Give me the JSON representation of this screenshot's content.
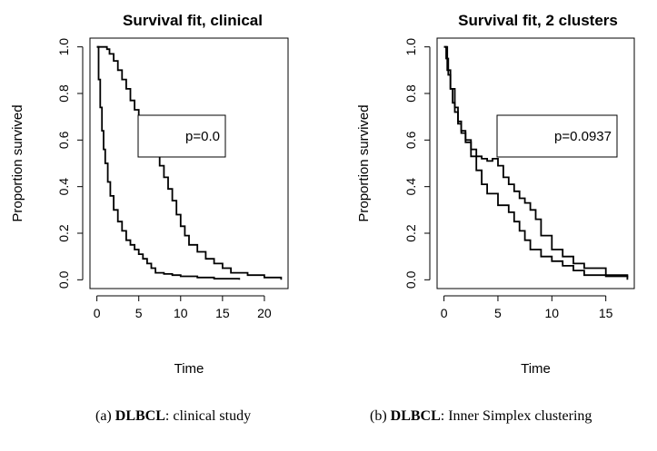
{
  "chart_data": [
    {
      "type": "line",
      "title": "Survival fit, clinical",
      "xlabel": "Time",
      "ylabel": "Proportion survived",
      "xlim": [
        0,
        22
      ],
      "ylim": [
        0,
        1
      ],
      "xticks": [
        0,
        5,
        10,
        15,
        20
      ],
      "yticks": [
        0.0,
        0.2,
        0.4,
        0.6,
        0.8,
        1.0
      ],
      "legend_text": "p=0.0",
      "legend_position": "top-right",
      "series": [
        {
          "x": [
            0,
            0.2,
            0.4,
            0.6,
            0.8,
            1.0,
            1.3,
            1.6,
            2.0,
            2.5,
            3.0,
            3.5,
            4.0,
            4.5,
            5.0,
            5.5,
            6.0,
            6.5,
            7.0,
            8.0,
            9.0,
            10.0,
            12.0,
            14.0,
            17.0
          ],
          "y": [
            1.0,
            0.86,
            0.74,
            0.64,
            0.56,
            0.5,
            0.42,
            0.36,
            0.3,
            0.25,
            0.21,
            0.17,
            0.15,
            0.13,
            0.11,
            0.09,
            0.07,
            0.05,
            0.03,
            0.025,
            0.02,
            0.015,
            0.01,
            0.005,
            0.0
          ]
        },
        {
          "x": [
            0,
            1.2,
            1.5,
            2.0,
            2.5,
            3.0,
            3.5,
            4.0,
            4.5,
            5.0,
            5.5,
            6.0,
            6.5,
            7.0,
            7.5,
            8.0,
            8.5,
            9.0,
            9.5,
            10.0,
            10.5,
            11.0,
            12.0,
            13.0,
            14.0,
            15.0,
            16.0,
            18.0,
            20.0,
            22.0
          ],
          "y": [
            1.0,
            0.99,
            0.97,
            0.94,
            0.9,
            0.86,
            0.82,
            0.77,
            0.73,
            0.7,
            0.67,
            0.63,
            0.59,
            0.54,
            0.49,
            0.44,
            0.39,
            0.34,
            0.28,
            0.23,
            0.19,
            0.15,
            0.12,
            0.09,
            0.07,
            0.05,
            0.03,
            0.02,
            0.01,
            0.0
          ]
        }
      ]
    },
    {
      "type": "line",
      "title": "Survival fit, 2 clusters",
      "xlabel": "Time",
      "ylabel": "Proportion survived",
      "xlim": [
        0,
        17
      ],
      "ylim": [
        0,
        1
      ],
      "xticks": [
        0,
        5,
        10,
        15
      ],
      "yticks": [
        0.0,
        0.2,
        0.4,
        0.6,
        0.8,
        1.0
      ],
      "legend_text": "p=0.0937",
      "legend_position": "top-right",
      "series": [
        {
          "x": [
            0,
            0.2,
            0.4,
            0.6,
            0.8,
            1.0,
            1.3,
            1.6,
            2.0,
            2.5,
            3.0,
            3.5,
            4.0,
            5.0,
            6.0,
            6.5,
            7.0,
            7.5,
            8.0,
            9.0,
            10.0,
            11.0,
            12.0,
            13.0,
            15.0,
            17.0
          ],
          "y": [
            1.0,
            0.95,
            0.88,
            0.82,
            0.76,
            0.72,
            0.67,
            0.63,
            0.59,
            0.53,
            0.47,
            0.41,
            0.37,
            0.32,
            0.29,
            0.25,
            0.21,
            0.17,
            0.13,
            0.1,
            0.08,
            0.06,
            0.04,
            0.02,
            0.015,
            0.01
          ]
        },
        {
          "x": [
            0,
            0.3,
            0.6,
            1.0,
            1.3,
            1.6,
            2.0,
            2.5,
            3.0,
            3.5,
            4.0,
            4.5,
            5.0,
            5.5,
            6.0,
            6.5,
            7.0,
            7.5,
            8.0,
            8.5,
            9.0,
            10.0,
            11.0,
            12.0,
            13.0,
            15.0,
            17.0
          ],
          "y": [
            1.0,
            0.9,
            0.82,
            0.74,
            0.68,
            0.64,
            0.6,
            0.56,
            0.53,
            0.52,
            0.51,
            0.52,
            0.49,
            0.44,
            0.41,
            0.38,
            0.35,
            0.33,
            0.3,
            0.26,
            0.19,
            0.13,
            0.1,
            0.07,
            0.05,
            0.02,
            0.0
          ]
        }
      ]
    }
  ],
  "captions": [
    {
      "prefix": "(a) ",
      "bold": "DLBCL",
      "rest": ": clinical study"
    },
    {
      "prefix": "(b) ",
      "bold": "DLBCL",
      "rest": ": Inner Simplex clustering"
    }
  ]
}
